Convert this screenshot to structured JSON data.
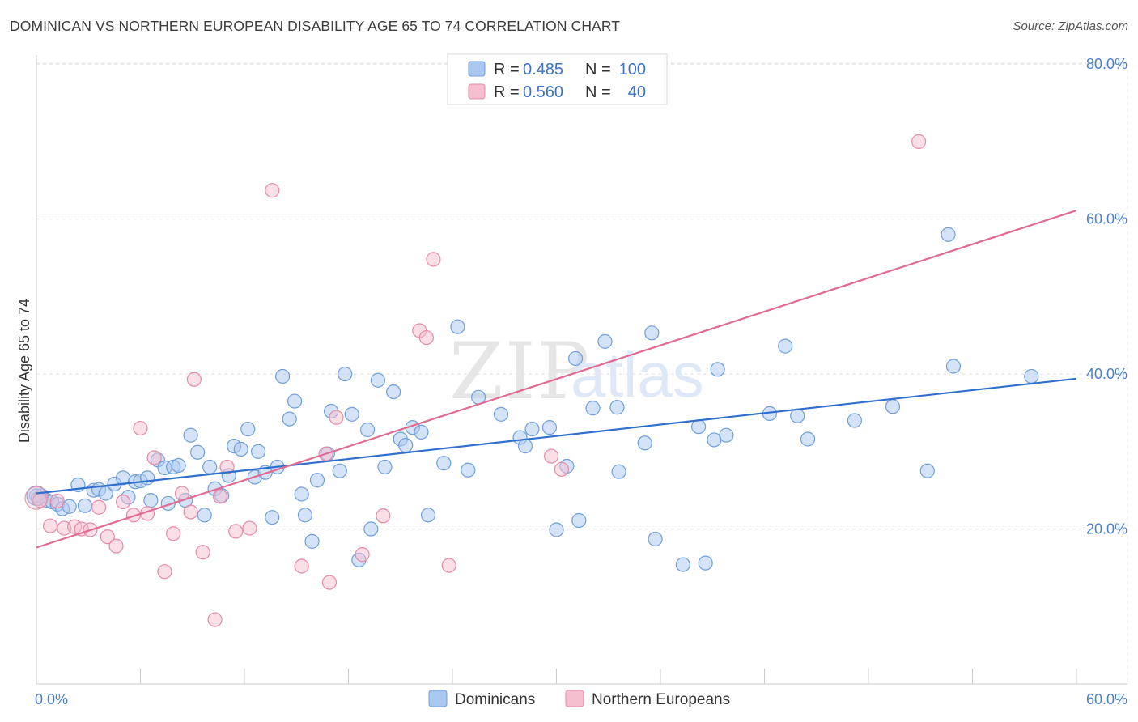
{
  "header": {
    "title": "DOMINICAN VS NORTHERN EUROPEAN DISABILITY AGE 65 TO 74 CORRELATION CHART",
    "source": "Source: ZipAtlas.com"
  },
  "watermark": {
    "zip": "ZIP",
    "atlas": "atlas"
  },
  "legend": {
    "items": [
      {
        "r_label": "R =",
        "r_value": "0.485",
        "n_label": "N =",
        "n_value": "100"
      },
      {
        "r_label": "R =",
        "r_value": "0.560",
        "n_label": "N =",
        "n_value": "40"
      }
    ]
  },
  "chart_data": {
    "type": "scatter",
    "title": "DOMINICAN VS NORTHERN EUROPEAN DISABILITY AGE 65 TO 74 CORRELATION CHART",
    "xlabel": "",
    "ylabel": "Disability Age 65 to 74",
    "xlim": [
      0,
      60
    ],
    "ylim": [
      0,
      82
    ],
    "x_tick_labels": [
      "0.0%",
      "60.0%"
    ],
    "y_tick_values": [
      20,
      40,
      60,
      80
    ],
    "y_tick_labels": [
      "20.0%",
      "40.0%",
      "60.0%",
      "80.0%"
    ],
    "grid": true,
    "colors": {
      "Dominicans": {
        "fill": "#a9c8f0",
        "stroke": "#6f9fdc",
        "line": "#2f6fce"
      },
      "Northern Europeans": {
        "fill": "#f6bfd0",
        "stroke": "#e68aa8",
        "line": "#e06b93"
      }
    },
    "series": [
      {
        "name": "Dominicans",
        "R": 0.485,
        "N": 100,
        "trend": {
          "x": [
            0,
            60
          ],
          "y": [
            24.6,
            39.4
          ]
        },
        "points": [
          [
            0.1,
            23.9
          ],
          [
            0.3,
            24.3
          ],
          [
            0.6,
            23.7
          ],
          [
            0.9,
            23.5
          ],
          [
            1.2,
            23.2
          ],
          [
            1.5,
            22.6
          ],
          [
            1.9,
            22.9
          ],
          [
            2.4,
            25.7
          ],
          [
            2.8,
            23.0
          ],
          [
            3.3,
            25.0
          ],
          [
            3.6,
            25.1
          ],
          [
            4.0,
            24.6
          ],
          [
            4.5,
            25.8
          ],
          [
            5.0,
            26.6
          ],
          [
            5.3,
            24.1
          ],
          [
            5.7,
            26.1
          ],
          [
            6.0,
            26.2
          ],
          [
            6.4,
            26.6
          ],
          [
            6.6,
            23.7
          ],
          [
            7.0,
            28.9
          ],
          [
            7.4,
            27.9
          ],
          [
            7.6,
            23.3
          ],
          [
            7.9,
            28.0
          ],
          [
            8.2,
            28.2
          ],
          [
            8.6,
            23.7
          ],
          [
            8.9,
            32.1
          ],
          [
            9.3,
            29.9
          ],
          [
            9.7,
            21.8
          ],
          [
            10.0,
            28.0
          ],
          [
            10.3,
            25.2
          ],
          [
            10.7,
            24.3
          ],
          [
            11.1,
            26.9
          ],
          [
            11.4,
            30.7
          ],
          [
            11.8,
            30.3
          ],
          [
            12.2,
            32.9
          ],
          [
            12.6,
            26.7
          ],
          [
            12.8,
            30.0
          ],
          [
            13.2,
            27.3
          ],
          [
            13.6,
            21.5
          ],
          [
            13.9,
            28.0
          ],
          [
            14.2,
            39.7
          ],
          [
            14.6,
            34.2
          ],
          [
            14.9,
            36.5
          ],
          [
            15.3,
            24.5
          ],
          [
            15.5,
            21.8
          ],
          [
            15.9,
            18.4
          ],
          [
            16.2,
            26.3
          ],
          [
            16.8,
            29.7
          ],
          [
            17.0,
            35.2
          ],
          [
            17.5,
            27.5
          ],
          [
            17.8,
            40.0
          ],
          [
            18.2,
            34.8
          ],
          [
            18.6,
            16.0
          ],
          [
            19.1,
            32.8
          ],
          [
            19.3,
            20.0
          ],
          [
            19.7,
            39.2
          ],
          [
            20.1,
            28.0
          ],
          [
            20.6,
            37.7
          ],
          [
            21.0,
            31.6
          ],
          [
            21.3,
            30.8
          ],
          [
            21.7,
            33.1
          ],
          [
            22.2,
            32.5
          ],
          [
            22.6,
            21.8
          ],
          [
            23.5,
            28.5
          ],
          [
            24.3,
            46.1
          ],
          [
            24.9,
            27.6
          ],
          [
            25.5,
            37.0
          ],
          [
            26.8,
            34.8
          ],
          [
            27.9,
            31.8
          ],
          [
            28.2,
            30.7
          ],
          [
            28.6,
            32.9
          ],
          [
            29.6,
            33.1
          ],
          [
            30.0,
            19.9
          ],
          [
            30.6,
            28.1
          ],
          [
            31.1,
            42.0
          ],
          [
            31.3,
            21.1
          ],
          [
            32.1,
            35.6
          ],
          [
            32.8,
            44.2
          ],
          [
            33.5,
            35.7
          ],
          [
            33.6,
            27.4
          ],
          [
            35.1,
            31.1
          ],
          [
            35.5,
            45.3
          ],
          [
            35.7,
            18.7
          ],
          [
            37.3,
            15.4
          ],
          [
            38.2,
            33.2
          ],
          [
            38.6,
            15.6
          ],
          [
            39.1,
            31.5
          ],
          [
            39.3,
            40.6
          ],
          [
            39.8,
            32.1
          ],
          [
            42.3,
            34.9
          ],
          [
            43.2,
            43.6
          ],
          [
            43.9,
            34.6
          ],
          [
            44.5,
            31.6
          ],
          [
            47.2,
            34.0
          ],
          [
            49.4,
            35.8
          ],
          [
            51.4,
            27.5
          ],
          [
            52.6,
            58.0
          ],
          [
            52.9,
            41.0
          ],
          [
            57.4,
            39.7
          ],
          [
            0.0,
            24.3
          ]
        ]
      },
      {
        "name": "Northern Europeans",
        "R": 0.56,
        "N": 40,
        "trend": {
          "x": [
            0,
            60
          ],
          "y": [
            17.6,
            61.1
          ]
        },
        "points": [
          [
            0.2,
            23.7
          ],
          [
            0.8,
            20.4
          ],
          [
            1.2,
            23.6
          ],
          [
            1.6,
            20.1
          ],
          [
            2.2,
            20.3
          ],
          [
            2.6,
            20.0
          ],
          [
            3.1,
            19.9
          ],
          [
            3.6,
            22.8
          ],
          [
            4.1,
            19.0
          ],
          [
            4.6,
            17.8
          ],
          [
            5.0,
            23.5
          ],
          [
            5.6,
            21.8
          ],
          [
            6.0,
            33.0
          ],
          [
            6.4,
            22.0
          ],
          [
            6.8,
            29.2
          ],
          [
            7.4,
            14.5
          ],
          [
            7.9,
            19.4
          ],
          [
            8.4,
            24.6
          ],
          [
            8.9,
            22.2
          ],
          [
            9.1,
            39.3
          ],
          [
            9.6,
            17.0
          ],
          [
            10.3,
            8.3
          ],
          [
            10.6,
            24.2
          ],
          [
            11.0,
            28.0
          ],
          [
            11.5,
            19.7
          ],
          [
            12.3,
            20.1
          ],
          [
            13.6,
            63.7
          ],
          [
            15.3,
            15.2
          ],
          [
            16.7,
            29.7
          ],
          [
            16.9,
            13.1
          ],
          [
            17.3,
            34.4
          ],
          [
            18.8,
            16.7
          ],
          [
            20.0,
            21.7
          ],
          [
            22.1,
            45.6
          ],
          [
            22.5,
            44.7
          ],
          [
            22.9,
            54.8
          ],
          [
            23.8,
            15.3
          ],
          [
            29.7,
            29.4
          ],
          [
            30.3,
            27.7
          ],
          [
            50.9,
            70.0
          ]
        ]
      }
    ]
  },
  "bottom_legend": {
    "items": [
      {
        "label": "Dominicans"
      },
      {
        "label": "Northern Europeans"
      }
    ]
  }
}
